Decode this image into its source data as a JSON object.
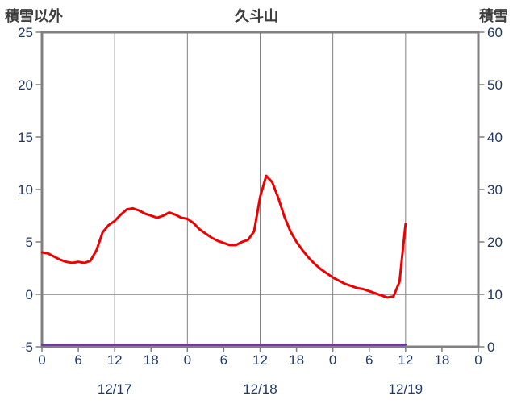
{
  "header": {
    "left_axis_title": "積雪以外",
    "title": "久斗山",
    "right_axis_title": "積雪"
  },
  "colors": {
    "border": "#808080",
    "grid": "#808080",
    "zero_line": "#808080",
    "tick_text": "#1f3864",
    "header_text": "#3d3d3d",
    "red_series": "#ee0000",
    "purple_series": "#7030a0"
  },
  "chart_data": {
    "type": "line",
    "title": "久斗山",
    "left_axis": {
      "label": "積雪以外",
      "min": -5,
      "max": 25,
      "ticks": [
        25,
        20,
        15,
        10,
        5,
        0,
        -5
      ]
    },
    "right_axis": {
      "label": "積雪",
      "min": 0,
      "max": 60,
      "ticks": [
        60,
        50,
        40,
        30,
        20,
        10,
        0
      ]
    },
    "x_axis": {
      "hours_span": 72,
      "tick_interval": 6,
      "tick_labels": [
        "0",
        "6",
        "12",
        "18",
        "0",
        "6",
        "12",
        "18",
        "0",
        "6",
        "12",
        "18",
        "0"
      ],
      "date_labels": [
        {
          "label": "12/17",
          "hour": 12
        },
        {
          "label": "12/18",
          "hour": 36
        },
        {
          "label": "12/19",
          "hour": 60
        }
      ],
      "gridline_hours": [
        12,
        24,
        36,
        48,
        60
      ]
    },
    "zero_gridline": true,
    "grid": "partial",
    "legend": "none",
    "series": [
      {
        "name": "purple",
        "axis": "right",
        "color": "#7030a0",
        "width": 2.5,
        "start_hour": 0,
        "step_hours": 60,
        "values": [
          0,
          0
        ]
      },
      {
        "name": "red",
        "axis": "left",
        "color": "#ee0000",
        "width": 3,
        "start_hour": 0,
        "step_hours": 1,
        "values": [
          4.0,
          3.9,
          3.6,
          3.3,
          3.1,
          3.0,
          3.1,
          3.0,
          3.2,
          4.2,
          5.9,
          6.6,
          7.0,
          7.6,
          8.1,
          8.2,
          8.0,
          7.7,
          7.5,
          7.3,
          7.5,
          7.8,
          7.6,
          7.3,
          7.2,
          6.8,
          6.2,
          5.8,
          5.4,
          5.1,
          4.9,
          4.7,
          4.7,
          5.0,
          5.2,
          6.0,
          9.3,
          11.3,
          10.7,
          9.2,
          7.4,
          6.0,
          5.0,
          4.2,
          3.5,
          2.9,
          2.4,
          2.0,
          1.6,
          1.3,
          1.0,
          0.8,
          0.6,
          0.5,
          0.3,
          0.1,
          -0.1,
          -0.3,
          -0.2,
          1.2,
          6.7
        ]
      }
    ]
  }
}
